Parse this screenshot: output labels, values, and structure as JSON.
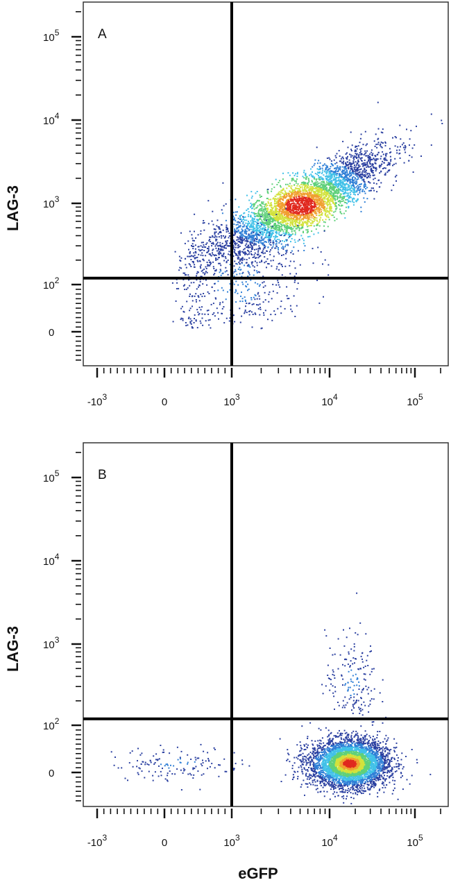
{
  "chart_data": [
    {
      "type": "scatter",
      "panel": "A",
      "xlabel": "eGFP",
      "ylabel": "LAG-3",
      "x_scale": "biexponential",
      "y_scale": "biexponential",
      "x_ticks": [
        {
          "value": -1000,
          "base": "-10",
          "exp": "3"
        },
        {
          "value": 0,
          "base": "0",
          "exp": ""
        },
        {
          "value": 1000,
          "base": "10",
          "exp": "3"
        },
        {
          "value": 10000,
          "base": "10",
          "exp": "4"
        },
        {
          "value": 100000,
          "base": "10",
          "exp": "5"
        }
      ],
      "y_ticks": [
        {
          "value": 0,
          "base": "0",
          "exp": ""
        },
        {
          "value": 100,
          "base": "10",
          "exp": "2"
        },
        {
          "value": 1000,
          "base": "10",
          "exp": "3"
        },
        {
          "value": 10000,
          "base": "10",
          "exp": "4"
        },
        {
          "value": 100000,
          "base": "10",
          "exp": "5"
        }
      ],
      "gate_x": 1000,
      "gate_y": 120,
      "populations": [
        {
          "x_center": 5000,
          "y_center": 950,
          "x_log_spread": 0.45,
          "y_log_spread": 0.32,
          "count": 4200,
          "correlation": 0.85
        },
        {
          "x_center": 1200,
          "y_center": 110,
          "x_log_spread": 0.35,
          "y_log_spread": 0.4,
          "count": 500,
          "correlation": 0.3
        }
      ],
      "density_colors": [
        "#2a3fa0",
        "#2f7fd6",
        "#41c1e8",
        "#5fd07a",
        "#d2e23c",
        "#f0a030",
        "#e0281e"
      ]
    },
    {
      "type": "scatter",
      "panel": "B",
      "xlabel": "eGFP",
      "ylabel": "LAG-3",
      "x_scale": "biexponential",
      "y_scale": "biexponential",
      "x_ticks": [
        {
          "value": -1000,
          "base": "-10",
          "exp": "3"
        },
        {
          "value": 0,
          "base": "0",
          "exp": ""
        },
        {
          "value": 1000,
          "base": "10",
          "exp": "3"
        },
        {
          "value": 10000,
          "base": "10",
          "exp": "4"
        },
        {
          "value": 100000,
          "base": "10",
          "exp": "5"
        }
      ],
      "y_ticks": [
        {
          "value": 0,
          "base": "0",
          "exp": ""
        },
        {
          "value": 100,
          "base": "10",
          "exp": "2"
        },
        {
          "value": 1000,
          "base": "10",
          "exp": "3"
        },
        {
          "value": 10000,
          "base": "10",
          "exp": "4"
        },
        {
          "value": 100000,
          "base": "10",
          "exp": "5"
        }
      ],
      "gate_x": 1000,
      "gate_y": 120,
      "populations": [
        {
          "x_center": 17000,
          "y_center": 20,
          "x_log_spread": 0.22,
          "y_log_spread": 0.0,
          "y_linear_spread": 25,
          "count": 4500,
          "correlation": 0.0
        },
        {
          "x_center": 18000,
          "y_center": 350,
          "x_log_spread": 0.15,
          "y_log_spread": 0.3,
          "count": 180,
          "correlation": 0.0
        },
        {
          "x_center": 200,
          "y_center": 20,
          "x_log_spread": 0.0,
          "x_linear_spread": 500,
          "y_log_spread": 0.0,
          "y_linear_spread": 18,
          "count": 140,
          "correlation": 0.0
        }
      ],
      "density_colors": [
        "#2a3fa0",
        "#2f7fd6",
        "#41c1e8",
        "#5fd07a",
        "#d2e23c",
        "#f0a030",
        "#e0281e"
      ]
    }
  ]
}
